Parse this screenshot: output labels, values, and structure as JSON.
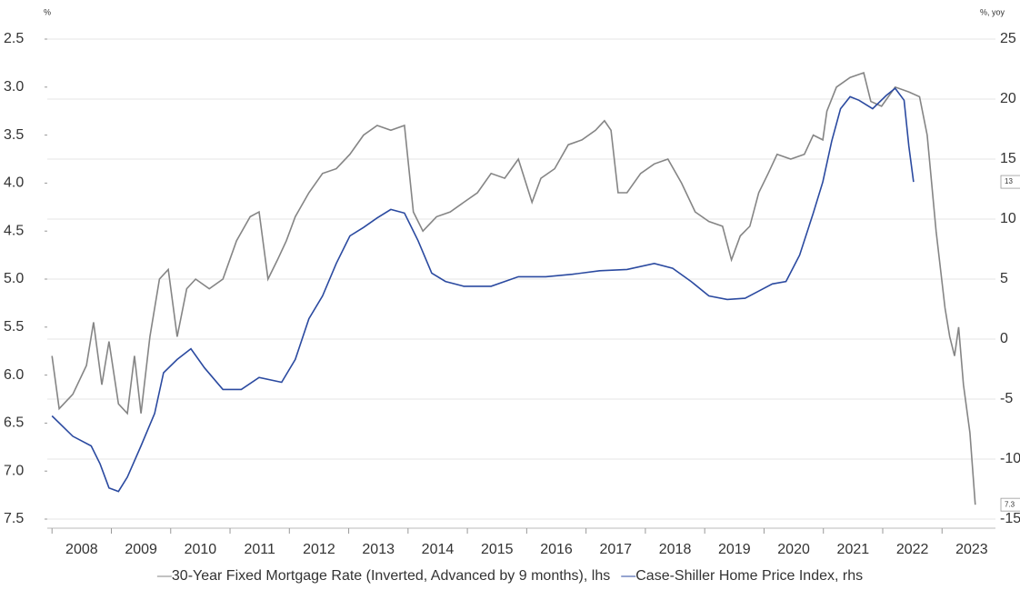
{
  "chart_data": {
    "type": "line",
    "ylabel": "%",
    "y2label": "%, yoy",
    "ylim": [
      2.5,
      7.5
    ],
    "y_inverted": true,
    "yticks": [
      2.5,
      {
        "value": 3,
        "label": "3.0"
      },
      3.5,
      {
        "value": 4,
        "label": "4.0"
      },
      4.5,
      {
        "value": 5,
        "label": "5.0"
      },
      5.5,
      {
        "value": 6,
        "label": "6.0"
      },
      6.5,
      {
        "value": 7,
        "label": "7.0"
      },
      7.5
    ],
    "y2lim": [
      -15,
      25
    ],
    "y2ticks": [
      25,
      20,
      15,
      10,
      5,
      0,
      -5,
      -10,
      -15
    ],
    "xlim": [
      2007.92,
      2023.9
    ],
    "xticks": [
      2008,
      2009,
      2010,
      2011,
      2012,
      2013,
      2014,
      2015,
      2016,
      2017,
      2018,
      2019,
      2020,
      2021,
      2022,
      2023
    ],
    "grid": true,
    "legend": "bottom",
    "series": [
      {
        "name": "30-Year Fixed Mortgage Rate (Inverted, Advanced by 9 months), lhs",
        "color": "#858585",
        "axis": "y",
        "end_label": "7.3",
        "x": [
          2008.0,
          2008.12,
          2008.35,
          2008.58,
          2008.7,
          2008.84,
          2008.96,
          2009.12,
          2009.27,
          2009.39,
          2009.5,
          2009.65,
          2009.81,
          2009.96,
          2010.11,
          2010.27,
          2010.42,
          2010.65,
          2010.88,
          2011.11,
          2011.34,
          2011.49,
          2011.64,
          2011.8,
          2011.95,
          2012.1,
          2012.33,
          2012.56,
          2012.79,
          2013.02,
          2013.25,
          2013.48,
          2013.71,
          2013.94,
          2014.09,
          2014.25,
          2014.48,
          2014.71,
          2014.94,
          2015.17,
          2015.4,
          2015.63,
          2015.86,
          2016.09,
          2016.24,
          2016.47,
          2016.7,
          2016.93,
          2017.16,
          2017.31,
          2017.42,
          2017.54,
          2017.69,
          2017.92,
          2018.15,
          2018.38,
          2018.61,
          2018.84,
          2019.07,
          2019.3,
          2019.45,
          2019.6,
          2019.76,
          2019.91,
          2020.07,
          2020.22,
          2020.45,
          2020.68,
          2020.83,
          2020.99,
          2021.06,
          2021.22,
          2021.45,
          2021.68,
          2021.8,
          2021.98,
          2022.21,
          2022.44,
          2022.62,
          2022.75,
          2022.9,
          2023.05,
          2023.13,
          2023.21,
          2023.28,
          2023.36,
          2023.47,
          2023.56
        ],
        "values": [
          5.8,
          6.35,
          6.2,
          5.9,
          5.45,
          6.1,
          5.65,
          6.3,
          6.4,
          5.8,
          6.4,
          5.6,
          5.0,
          4.9,
          5.6,
          5.1,
          5.0,
          5.1,
          5.0,
          4.6,
          4.35,
          4.3,
          5.0,
          4.8,
          4.6,
          4.35,
          4.1,
          3.9,
          3.85,
          3.7,
          3.5,
          3.4,
          3.45,
          3.4,
          4.3,
          4.5,
          4.35,
          4.3,
          4.2,
          4.1,
          3.9,
          3.95,
          3.75,
          4.2,
          3.95,
          3.85,
          3.6,
          3.55,
          3.45,
          3.35,
          3.45,
          4.1,
          4.1,
          3.9,
          3.8,
          3.75,
          4.0,
          4.3,
          4.4,
          4.45,
          4.8,
          4.55,
          4.45,
          4.1,
          3.9,
          3.7,
          3.75,
          3.7,
          3.5,
          3.55,
          3.25,
          3.0,
          2.9,
          2.85,
          3.15,
          3.2,
          3.0,
          3.05,
          3.1,
          3.5,
          4.5,
          5.3,
          5.6,
          5.8,
          5.5,
          6.1,
          6.6,
          7.35
        ]
      },
      {
        "name": "Case-Shiller Home Price Index, rhs",
        "color": "#2b4aa0",
        "axis": "y2",
        "end_label": "13",
        "x": [
          2008.0,
          2008.35,
          2008.66,
          2008.81,
          2008.96,
          2009.12,
          2009.27,
          2009.5,
          2009.73,
          2009.88,
          2010.11,
          2010.34,
          2010.57,
          2010.88,
          2011.19,
          2011.49,
          2011.87,
          2012.1,
          2012.33,
          2012.56,
          2012.79,
          2013.02,
          2013.25,
          2013.48,
          2013.71,
          2013.94,
          2014.17,
          2014.4,
          2014.63,
          2014.94,
          2015.4,
          2015.86,
          2016.32,
          2016.77,
          2017.23,
          2017.69,
          2018.15,
          2018.46,
          2018.77,
          2019.07,
          2019.38,
          2019.68,
          2019.91,
          2020.14,
          2020.37,
          2020.6,
          2020.83,
          2020.99,
          2021.14,
          2021.29,
          2021.45,
          2021.6,
          2021.83,
          2022.06,
          2022.21,
          2022.36,
          2022.44,
          2022.52
        ],
        "values": [
          -6.4,
          -8.1,
          -8.9,
          -10.4,
          -12.4,
          -12.7,
          -11.5,
          -8.9,
          -6.2,
          -2.8,
          -1.7,
          -0.8,
          -2.4,
          -4.2,
          -4.2,
          -3.2,
          -3.6,
          -1.7,
          1.7,
          3.6,
          6.3,
          8.6,
          9.3,
          10.1,
          10.8,
          10.5,
          8.2,
          5.5,
          4.8,
          4.4,
          4.4,
          5.2,
          5.2,
          5.4,
          5.7,
          5.8,
          6.3,
          5.9,
          4.8,
          3.6,
          3.3,
          3.4,
          4.0,
          4.6,
          4.8,
          7.0,
          10.5,
          13.1,
          16.5,
          19.2,
          20.2,
          19.9,
          19.2,
          20.3,
          20.9,
          19.9,
          16.1,
          13.1
        ]
      }
    ]
  }
}
